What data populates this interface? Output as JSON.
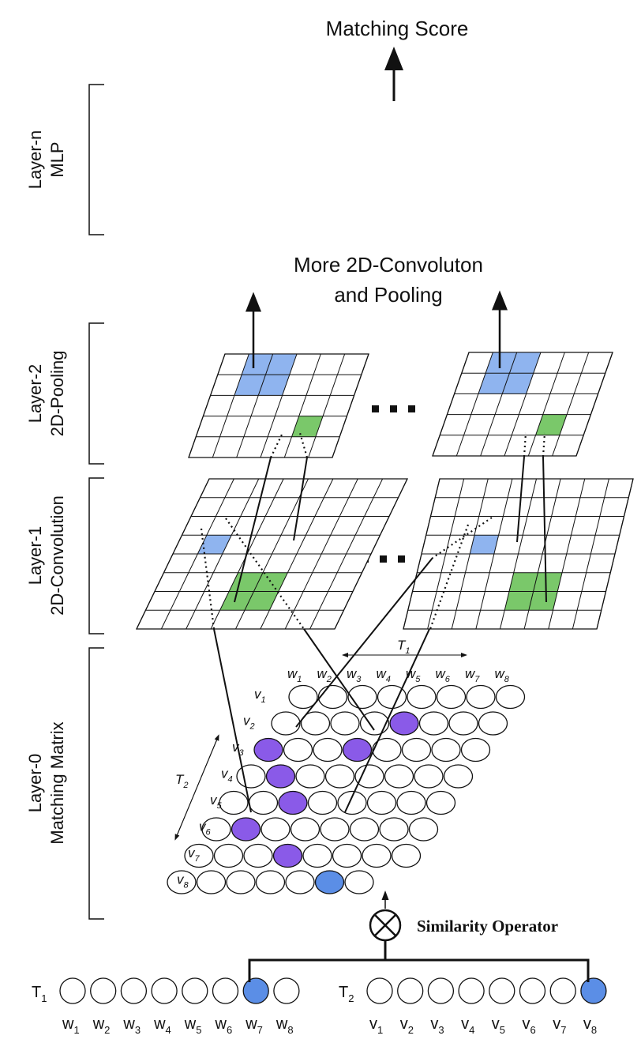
{
  "top": {
    "title": "Matching Score"
  },
  "more": {
    "line1": "More 2D-Convoluton",
    "line2": "and Pooling"
  },
  "layers": {
    "n": {
      "line1": "Layer-n",
      "line2": "MLP"
    },
    "l2": {
      "line1": "Layer-2",
      "line2": "2D-Pooling"
    },
    "l1": {
      "line1": "Layer-1",
      "line2": "2D-Convolution"
    },
    "l0": {
      "line1": "Layer-0",
      "line2": "Matching Matrix"
    }
  },
  "ellipsis": "...",
  "matrix": {
    "t1_label": "T",
    "t1_sub": "1",
    "t2_label": "T",
    "t2_sub": "2",
    "cols": [
      "w1",
      "w2",
      "w3",
      "w4",
      "w5",
      "w6",
      "w7",
      "w8"
    ],
    "rows": [
      "v1",
      "v2",
      "v3",
      "v4",
      "v5",
      "v6",
      "v7",
      "v8"
    ]
  },
  "operator": {
    "label": "Similarity Operator",
    "symbol": "⊗"
  },
  "sequences": {
    "t1": {
      "label": "T",
      "sub": "1",
      "tokens": [
        "w1",
        "w2",
        "w3",
        "w4",
        "w5",
        "w6",
        "w7",
        "w8"
      ]
    },
    "t2": {
      "label": "T",
      "sub": "2",
      "tokens": [
        "v1",
        "v2",
        "v3",
        "v4",
        "v5",
        "v6",
        "v7",
        "v8"
      ]
    }
  },
  "colors": {
    "blue_node": "#5b8ee6",
    "purple_node": "#8a5ae8",
    "light_blue_cell": "#8fb4ef",
    "green_cell": "#7ac86a",
    "stroke": "#111111"
  }
}
